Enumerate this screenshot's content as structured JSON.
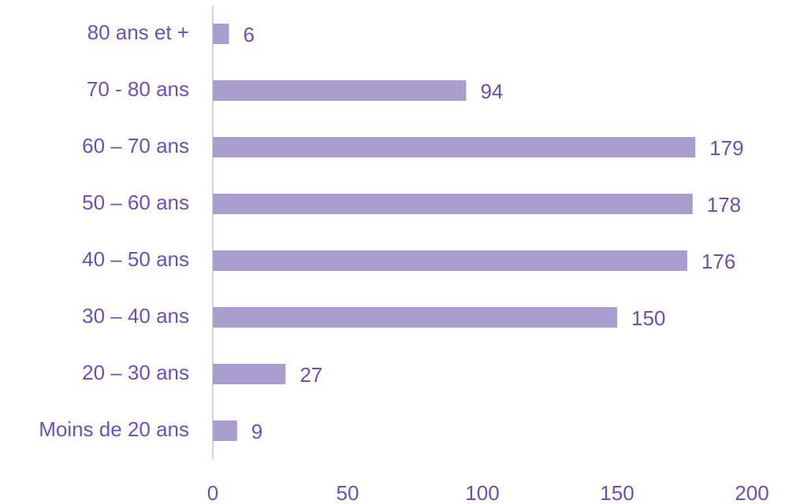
{
  "chart_data": {
    "type": "barh",
    "categories": [
      "80 ans et +",
      "70 - 80 ans",
      "60 – 70 ans",
      "50 – 60 ans",
      "40 – 50 ans",
      "30 – 40 ans",
      "20 – 30 ans",
      "Moins de 20 ans"
    ],
    "values": [
      6,
      94,
      179,
      178,
      176,
      150,
      27,
      9
    ],
    "color": "#aa9ecf",
    "xlim": [
      0,
      200
    ],
    "xticks": [
      0,
      50,
      100,
      150,
      200
    ],
    "grid": false
  }
}
